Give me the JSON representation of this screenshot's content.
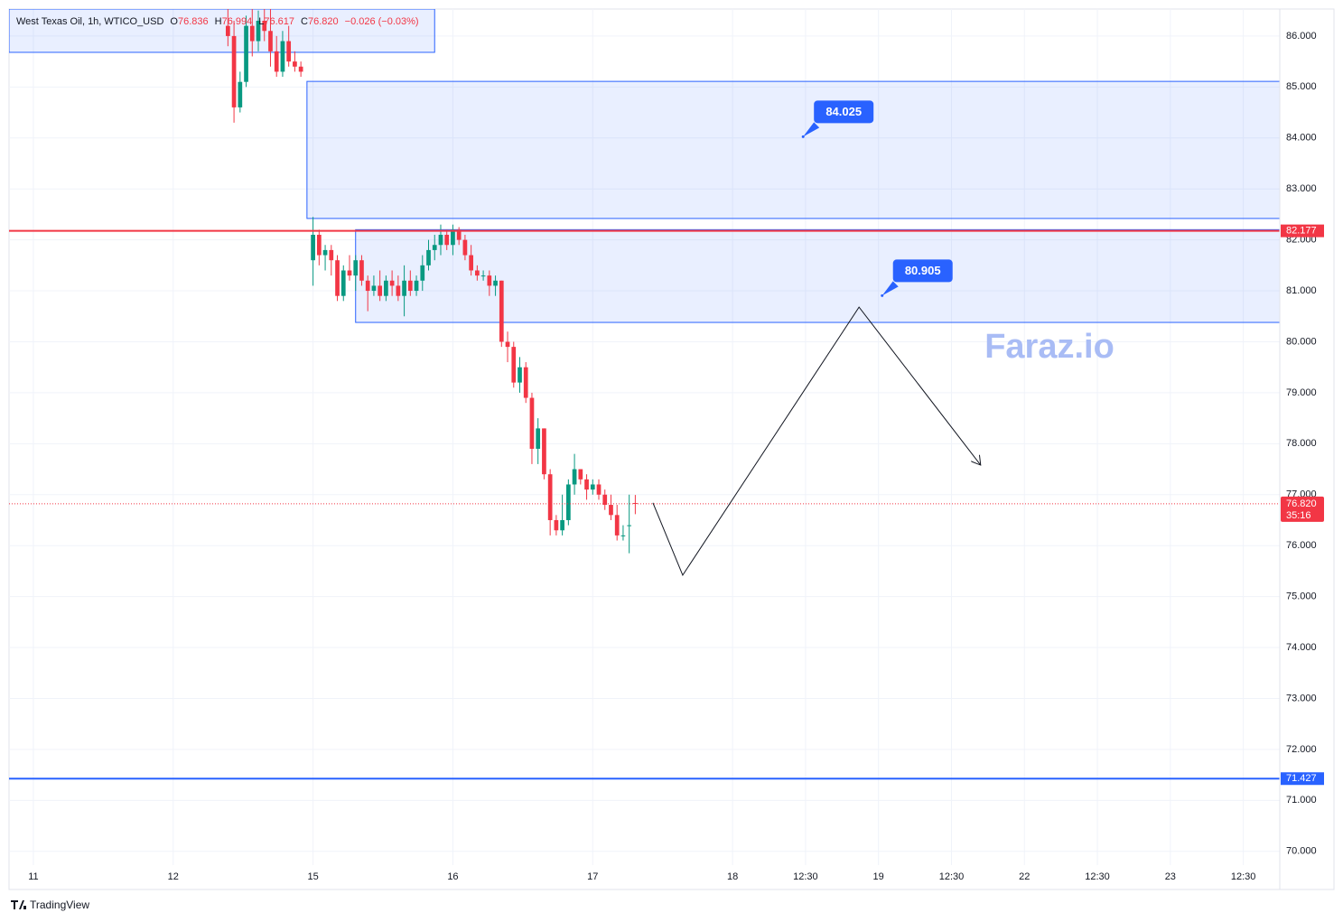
{
  "chart_data": {
    "type": "candlestick",
    "legend": {
      "title": "West Texas Oil, 1h, WTICO_USD",
      "items": [
        {
          "key": "O",
          "value": "76.836"
        },
        {
          "key": "H",
          "value": "76.994"
        },
        {
          "key": "L",
          "value": "76.617"
        },
        {
          "key": "C",
          "value": "76.820"
        }
      ],
      "change": "−0.026 (−0.03%)"
    },
    "xlim": [
      0,
      209
    ],
    "xticks": [
      {
        "value": 4,
        "label": "11"
      },
      {
        "value": 27,
        "label": "12"
      },
      {
        "value": 50,
        "label": "15"
      },
      {
        "value": 73,
        "label": "16"
      },
      {
        "value": 96,
        "label": "17"
      },
      {
        "value": 119,
        "label": "18"
      },
      {
        "value": 131,
        "label": "12:30"
      },
      {
        "value": 143,
        "label": "19"
      },
      {
        "value": 155,
        "label": "12:30"
      },
      {
        "value": 167,
        "label": "22"
      },
      {
        "value": 179,
        "label": "12:30"
      },
      {
        "value": 191,
        "label": "23"
      },
      {
        "value": 203,
        "label": "12:30"
      }
    ],
    "ylim": [
      69.73,
      86.53
    ],
    "yticks": [
      {
        "value": 70,
        "label": "70.000"
      },
      {
        "value": 71,
        "label": "71.000"
      },
      {
        "value": 72,
        "label": "72.000"
      },
      {
        "value": 73,
        "label": "73.000"
      },
      {
        "value": 74,
        "label": "74.000"
      },
      {
        "value": 75,
        "label": "75.000"
      },
      {
        "value": 76,
        "label": "76.000"
      },
      {
        "value": 77,
        "label": "77.000"
      },
      {
        "value": 78,
        "label": "78.000"
      },
      {
        "value": 79,
        "label": "79.000"
      },
      {
        "value": 80,
        "label": "80.000"
      },
      {
        "value": 81,
        "label": "81.000"
      },
      {
        "value": 82,
        "label": "82.000"
      },
      {
        "value": 83,
        "label": "83.000"
      },
      {
        "value": 84,
        "label": "84.000"
      },
      {
        "value": 85,
        "label": "85.000"
      },
      {
        "value": 86,
        "label": "86.000"
      }
    ],
    "grid": true,
    "up_color": "#089981",
    "down_color": "#f23645",
    "candles": {
      "x": [
        36,
        37,
        38,
        39,
        40,
        41,
        42,
        43,
        44,
        45,
        46,
        47,
        48,
        50,
        51,
        52,
        53,
        54,
        55,
        56,
        57,
        58,
        59,
        60,
        61,
        62,
        63,
        64,
        65,
        66,
        67,
        68,
        69,
        70,
        71,
        72,
        73,
        74,
        75,
        76,
        77,
        78,
        79,
        80,
        81,
        82,
        83,
        84,
        85,
        86,
        87,
        88,
        89,
        90,
        91,
        92,
        93,
        94,
        95,
        96,
        97,
        98,
        99,
        100,
        101,
        102,
        103
      ],
      "open": [
        86.2,
        86.0,
        84.6,
        85.1,
        86.2,
        85.9,
        86.3,
        86.1,
        85.7,
        85.3,
        85.9,
        85.5,
        85.4,
        81.6,
        82.1,
        81.7,
        81.8,
        81.6,
        80.9,
        81.4,
        81.3,
        81.6,
        81.2,
        81.0,
        81.1,
        80.9,
        81.2,
        81.1,
        80.9,
        81.2,
        81.0,
        81.2,
        81.5,
        81.8,
        81.9,
        82.1,
        81.9,
        82.2,
        82.0,
        81.7,
        81.4,
        81.3,
        81.3,
        81.1,
        81.2,
        80.0,
        79.9,
        79.2,
        79.5,
        78.9,
        77.9,
        78.3,
        77.4,
        76.5,
        76.3,
        76.5,
        77.2,
        77.5,
        77.3,
        77.1,
        77.2,
        77.0,
        76.8,
        76.6,
        76.2,
        76.4,
        76.836
      ],
      "high": [
        86.6,
        86.3,
        85.3,
        86.4,
        86.6,
        86.5,
        86.6,
        86.6,
        86.0,
        86.1,
        86.2,
        85.7,
        85.5,
        82.45,
        82.2,
        81.9,
        81.9,
        81.7,
        81.5,
        81.7,
        81.7,
        81.7,
        81.3,
        81.3,
        81.4,
        81.3,
        81.4,
        81.3,
        81.5,
        81.4,
        81.3,
        81.7,
        82.0,
        82.1,
        82.3,
        82.2,
        82.3,
        82.25,
        82.1,
        81.9,
        81.5,
        81.4,
        81.4,
        81.3,
        81.2,
        80.2,
        80.0,
        79.7,
        79.6,
        79.0,
        78.5,
        78.3,
        77.5,
        76.6,
        77.0,
        77.3,
        77.8,
        77.5,
        77.4,
        77.3,
        77.3,
        77.1,
        77.0,
        76.8,
        76.4,
        77.0,
        76.994
      ],
      "low": [
        85.8,
        84.3,
        84.5,
        85.0,
        85.6,
        85.7,
        85.9,
        85.4,
        85.2,
        85.2,
        85.4,
        85.3,
        85.2,
        81.1,
        81.5,
        81.4,
        81.3,
        80.8,
        80.8,
        81.2,
        81.0,
        81.1,
        80.6,
        80.9,
        80.8,
        80.8,
        80.9,
        80.8,
        80.5,
        80.9,
        80.9,
        81.0,
        81.4,
        81.6,
        81.7,
        81.8,
        81.7,
        81.9,
        81.6,
        81.3,
        81.2,
        81.2,
        80.9,
        80.9,
        79.9,
        79.6,
        79.1,
        79.0,
        78.8,
        77.6,
        77.6,
        77.3,
        76.2,
        76.2,
        76.2,
        76.4,
        77.0,
        77.2,
        76.9,
        77.0,
        76.9,
        76.7,
        76.5,
        76.1,
        76.1,
        75.85,
        76.617
      ],
      "close": [
        86.0,
        84.6,
        85.1,
        86.2,
        85.9,
        86.3,
        86.1,
        85.7,
        85.3,
        85.9,
        85.5,
        85.4,
        85.3,
        82.1,
        81.7,
        81.8,
        81.6,
        80.9,
        81.4,
        81.3,
        81.6,
        81.2,
        81.0,
        81.1,
        80.9,
        81.2,
        81.1,
        80.9,
        81.2,
        81.0,
        81.2,
        81.5,
        81.8,
        81.9,
        82.1,
        81.9,
        82.2,
        82.0,
        81.7,
        81.4,
        81.3,
        81.3,
        81.1,
        81.2,
        80.0,
        79.9,
        79.2,
        79.5,
        78.9,
        77.9,
        78.3,
        77.4,
        76.5,
        76.3,
        76.5,
        77.2,
        77.5,
        77.3,
        77.1,
        77.2,
        77.0,
        76.8,
        76.6,
        76.2,
        76.2,
        76.4,
        76.82
      ]
    },
    "zones": [
      {
        "x": [
          0,
          70
        ],
        "y": [
          85.68,
          86.53
        ]
      },
      {
        "x": [
          49,
          209
        ],
        "y": [
          82.42,
          85.11
        ]
      },
      {
        "x": [
          57,
          209
        ],
        "y": [
          80.38,
          82.2
        ]
      }
    ],
    "zone_color": "#2962ff",
    "hlines": [
      {
        "value": 82.177,
        "label": "82.177",
        "color": "#f23645"
      },
      {
        "value": 71.427,
        "label": "71.427",
        "color": "#2962ff"
      }
    ],
    "current_price": {
      "value": 76.82,
      "label": "76.820",
      "countdown": "35:16",
      "color": "#f23645"
    },
    "callouts": [
      {
        "x": 130.6,
        "value": 84.025,
        "label": "84.025"
      },
      {
        "x": 143.6,
        "value": 80.905,
        "label": "80.905"
      }
    ],
    "callout_color": "#2962ff",
    "projection": {
      "x": [
        105.9,
        110.8,
        139.8,
        159.8
      ],
      "y": [
        76.84,
        75.42,
        80.68,
        77.58
      ]
    },
    "watermark": "Faraz.io",
    "brand": "TradingView"
  }
}
